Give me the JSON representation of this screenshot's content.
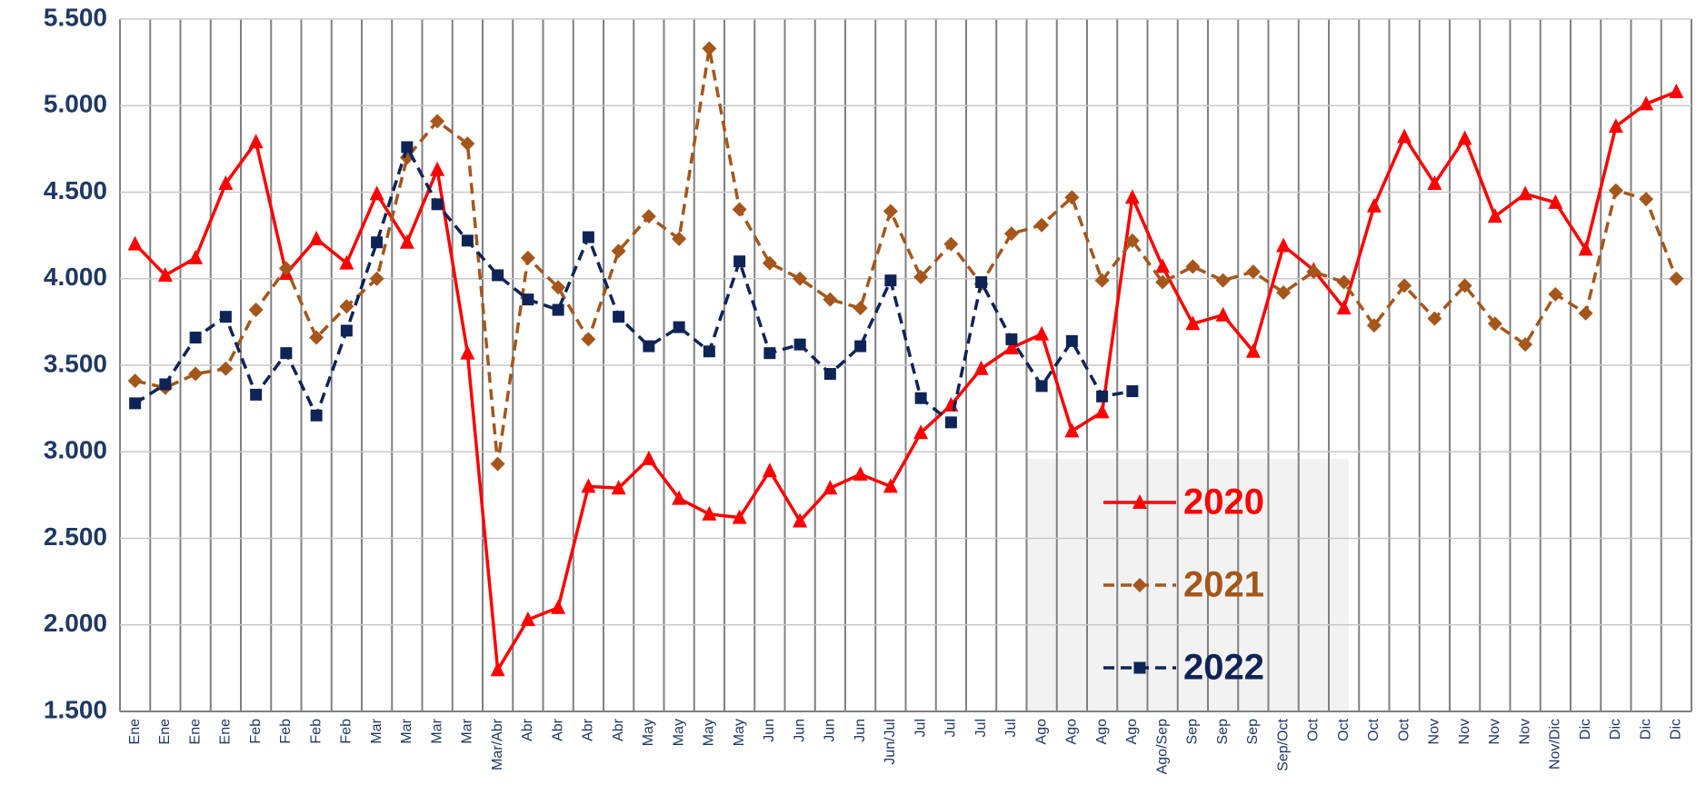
{
  "chart_data": {
    "type": "line",
    "categories": [
      "Ene",
      "Ene",
      "Ene",
      "Ene",
      "Feb",
      "Feb",
      "Feb",
      "Feb",
      "Mar",
      "Mar",
      "Mar",
      "Mar",
      "Mar/Abr",
      "Abr",
      "Abr",
      "Abr",
      "Abr",
      "May",
      "May",
      "May",
      "May",
      "Jun",
      "Jun",
      "Jun",
      "Jun",
      "Jun/Jul",
      "Jul",
      "Jul",
      "Jul",
      "Jul",
      "Ago",
      "Ago",
      "Ago",
      "Ago",
      "Ago/Sep",
      "Sep",
      "Sep",
      "Sep",
      "Sep/Oct",
      "Oct",
      "Oct",
      "Oct",
      "Oct",
      "Nov",
      "Nov",
      "Nov",
      "Nov",
      "Nov/Dic",
      "Dic",
      "Dic",
      "Dic",
      "Dic"
    ],
    "series": [
      {
        "name": "2020",
        "color": "#ff0000",
        "marker": "triangle",
        "dash": "solid",
        "values": [
          4200,
          4020,
          4120,
          4550,
          4790,
          4030,
          4230,
          4090,
          4490,
          4210,
          4630,
          3570,
          1740,
          2030,
          2100,
          2800,
          2790,
          2960,
          2730,
          2640,
          2620,
          2890,
          2600,
          2790,
          2870,
          2800,
          3110,
          3270,
          3480,
          3600,
          3680,
          3120,
          3230,
          4470,
          4070,
          3740,
          3790,
          3580,
          4190,
          4050,
          3830,
          4420,
          4820,
          4550,
          4810,
          4360,
          4490,
          4440,
          4170,
          4880,
          5010,
          5080
        ]
      },
      {
        "name": "2021",
        "color": "#a5561b",
        "marker": "diamond",
        "dash": "dashed",
        "values": [
          3410,
          3370,
          3450,
          3480,
          3820,
          4060,
          3660,
          3840,
          4000,
          4700,
          4910,
          4780,
          2930,
          4120,
          3950,
          3650,
          4160,
          4360,
          4230,
          5330,
          4400,
          4090,
          4000,
          3880,
          3830,
          4390,
          4010,
          4200,
          3970,
          4260,
          4310,
          4470,
          3990,
          4220,
          3980,
          4070,
          3990,
          4040,
          3920,
          4040,
          3980,
          3730,
          3960,
          3770,
          3960,
          3740,
          3620,
          3910,
          3800,
          4510,
          4460,
          4000
        ]
      },
      {
        "name": "2022",
        "color": "#0f2456",
        "marker": "square",
        "dash": "dashed",
        "values": [
          3280,
          3390,
          3660,
          3780,
          3330,
          3570,
          3210,
          3700,
          4210,
          4760,
          4430,
          4220,
          4020,
          3880,
          3820,
          4240,
          3780,
          3610,
          3720,
          3580,
          4100,
          3570,
          3620,
          3450,
          3610,
          3990,
          3310,
          3170,
          3980,
          3650,
          3380,
          3640,
          3320,
          3350,
          null,
          null,
          null,
          null,
          null,
          null,
          null,
          null,
          null,
          null,
          null,
          null,
          null,
          null,
          null,
          null,
          null,
          null
        ]
      }
    ],
    "ylim": [
      1500,
      5500
    ],
    "yticks": [
      {
        "value": 1500,
        "label": "1.500"
      },
      {
        "value": 2000,
        "label": "2.000"
      },
      {
        "value": 2500,
        "label": "2.500"
      },
      {
        "value": 3000,
        "label": "3.000"
      },
      {
        "value": 3500,
        "label": "3.500"
      },
      {
        "value": 4000,
        "label": "4.000"
      },
      {
        "value": 4500,
        "label": "4.500"
      },
      {
        "value": 5000,
        "label": "5.000"
      },
      {
        "value": 5500,
        "label": "5.500"
      }
    ],
    "grid": true
  }
}
